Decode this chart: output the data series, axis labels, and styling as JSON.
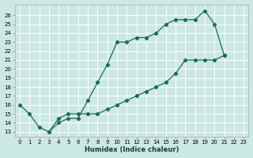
{
  "xlabel": "Humidex (Indice chaleur)",
  "bg_color": "#cce8e2",
  "line_color": "#1a6b5a",
  "grid_color": "#ffffff",
  "xlim": [
    -0.5,
    23.5
  ],
  "ylim": [
    12.5,
    27.2
  ],
  "xticks": [
    0,
    1,
    2,
    3,
    4,
    5,
    6,
    7,
    8,
    9,
    10,
    11,
    12,
    13,
    14,
    15,
    16,
    17,
    18,
    19,
    20,
    21,
    22,
    23
  ],
  "yticks": [
    13,
    14,
    15,
    16,
    17,
    18,
    19,
    20,
    21,
    22,
    23,
    24,
    25,
    26
  ],
  "upper_x": [
    0,
    1,
    2,
    3,
    4,
    5,
    6,
    7,
    8,
    9,
    10,
    11,
    12,
    13,
    14,
    15,
    16,
    17,
    18,
    19,
    20,
    21
  ],
  "upper_y": [
    16,
    15,
    13.5,
    13,
    14,
    14.5,
    14.5,
    16.5,
    18.5,
    20.5,
    23,
    23,
    23.5,
    23.5,
    24,
    25,
    25.5,
    25.5,
    25.5,
    26.5,
    25,
    21.5
  ],
  "lower_x": [
    3,
    4,
    5,
    6,
    7,
    8,
    9,
    10,
    11,
    12,
    13,
    14,
    15,
    16,
    17,
    18,
    19,
    20,
    21
  ],
  "lower_y": [
    13,
    14.5,
    15,
    15,
    15,
    15,
    15.5,
    16,
    16.5,
    17,
    17.5,
    18,
    18.5,
    19.5,
    21,
    21,
    21,
    21,
    21.5
  ],
  "marker_size": 2.2,
  "line_width": 0.9,
  "tick_fontsize": 5,
  "xlabel_fontsize": 6
}
